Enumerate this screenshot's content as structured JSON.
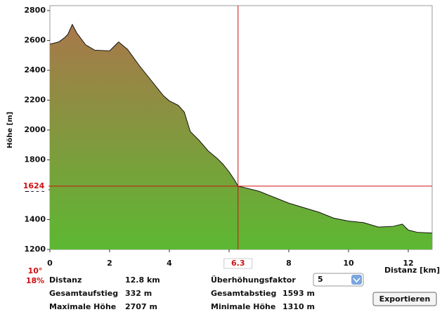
{
  "chart_data": {
    "type": "area",
    "ylabel": "Höhe [m]",
    "xlabel": "Distanz [km]",
    "xlim": [
      0,
      12.8
    ],
    "xticks": [
      0,
      2,
      4,
      6,
      8,
      10,
      12
    ],
    "ylim": [
      1200,
      2800
    ],
    "yticks": [
      1200,
      1400,
      1600,
      1800,
      2000,
      2200,
      2400,
      2600,
      2800
    ],
    "x": [
      0,
      0.3,
      0.5,
      0.6,
      0.75,
      0.9,
      1.2,
      1.5,
      2.0,
      2.2,
      2.3,
      2.6,
      3.0,
      3.4,
      3.8,
      4.0,
      4.3,
      4.5,
      4.7,
      5.0,
      5.3,
      5.6,
      5.8,
      6.0,
      6.2,
      6.3,
      6.5,
      6.8,
      7.0,
      7.5,
      8.0,
      8.5,
      9.0,
      9.5,
      10.0,
      10.5,
      11.0,
      11.5,
      11.8,
      12.0,
      12.3,
      12.8
    ],
    "values": [
      2575,
      2590,
      2620,
      2640,
      2707,
      2650,
      2570,
      2535,
      2530,
      2570,
      2590,
      2540,
      2430,
      2330,
      2230,
      2195,
      2165,
      2120,
      1990,
      1930,
      1860,
      1810,
      1770,
      1720,
      1660,
      1624,
      1615,
      1600,
      1590,
      1550,
      1510,
      1480,
      1450,
      1410,
      1390,
      1380,
      1350,
      1355,
      1370,
      1330,
      1315,
      1310
    ],
    "gradient": [
      "#a8784a",
      "#5cb832"
    ],
    "cursor": {
      "x": 6.3,
      "y": 1624,
      "color": "#d01010",
      "angle": "10°",
      "grade": "18%"
    }
  },
  "info": {
    "left": [
      {
        "label": "Distanz",
        "value": "12.8 km"
      },
      {
        "label": "Gesamtaufstieg",
        "value": "332 m"
      },
      {
        "label": "Maximale Höhe",
        "value": "2707 m"
      }
    ],
    "right": [
      {
        "label": "Überhöhungsfaktor",
        "value": null
      },
      {
        "label": "Gesamtabstieg",
        "value": "1593 m"
      },
      {
        "label": "Minimale Höhe",
        "value": "1310 m"
      }
    ],
    "factor": "5",
    "button": "Exportieren"
  }
}
